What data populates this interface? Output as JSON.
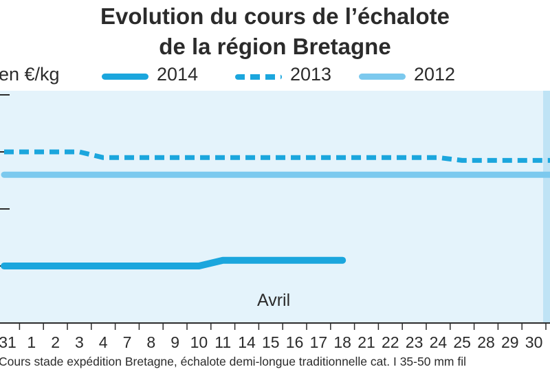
{
  "header": {
    "title_line1": "Evolution du cours de l’échalote",
    "title_line2": "de la région Bretagne",
    "unit": "en €/kg"
  },
  "legend": [
    {
      "label": "2014",
      "style": "solid",
      "color": "#1ba6dd"
    },
    {
      "label": "2013",
      "style": "dashed",
      "color": "#1ba6dd"
    },
    {
      "label": "2012",
      "style": "solid",
      "color": "#7cc9ee"
    }
  ],
  "month_label": "Avril",
  "footnote": "Cours stade expédition Bretagne, échalote demi-longue traditionnelle cat. I 35-50 mm fil",
  "chart_data": {
    "type": "line",
    "title": "Evolution du cours de l’échalote de la région Bretagne",
    "ylabel": "en €/kg",
    "x": [
      "31",
      "1",
      "2",
      "3",
      "4",
      "7",
      "8",
      "9",
      "10",
      "11",
      "14",
      "15",
      "16",
      "17",
      "18",
      "21",
      "22",
      "23",
      "24",
      "25",
      "28",
      "29",
      "30"
    ],
    "ylim": [
      0,
      4
    ],
    "y_ticks": [
      1,
      2,
      3,
      4
    ],
    "y_tick_labels_visible": false,
    "x_group_label": "Avril",
    "series": [
      {
        "name": "2014",
        "style": "solid",
        "color": "#1ba6dd",
        "values": [
          1.0,
          1.0,
          1.0,
          1.0,
          1.0,
          1.0,
          1.0,
          1.0,
          1.0,
          1.1,
          1.1,
          1.1,
          1.1,
          1.1,
          1.1,
          null,
          null,
          null,
          null,
          null,
          null,
          null,
          null
        ]
      },
      {
        "name": "2013",
        "style": "dashed",
        "color": "#1ba6dd",
        "values": [
          3.0,
          3.0,
          3.0,
          3.0,
          2.9,
          2.9,
          2.9,
          2.9,
          2.9,
          2.9,
          2.9,
          2.9,
          2.9,
          2.9,
          2.9,
          2.9,
          2.9,
          2.9,
          2.9,
          2.85,
          2.85,
          2.85,
          2.85
        ]
      },
      {
        "name": "2012",
        "style": "solid",
        "color": "#7cc9ee",
        "values": [
          2.6,
          2.6,
          2.6,
          2.6,
          2.6,
          2.6,
          2.6,
          2.6,
          2.6,
          2.6,
          2.6,
          2.6,
          2.6,
          2.6,
          2.6,
          2.6,
          2.6,
          2.6,
          2.6,
          2.6,
          2.6,
          2.6,
          2.6
        ]
      }
    ],
    "grid": false,
    "legend_position": "top"
  }
}
